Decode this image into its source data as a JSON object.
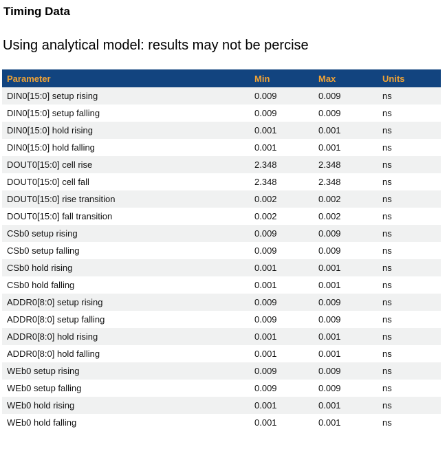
{
  "page": {
    "title": "Timing Data",
    "subtitle": "Using analytical model: results may not be percise"
  },
  "table": {
    "columns": [
      "Parameter",
      "Min",
      "Max",
      "Units"
    ],
    "rows": [
      {
        "parameter": "DIN0[15:0] setup rising",
        "min": "0.009",
        "max": "0.009",
        "units": "ns"
      },
      {
        "parameter": "DIN0[15:0] setup falling",
        "min": "0.009",
        "max": "0.009",
        "units": "ns"
      },
      {
        "parameter": "DIN0[15:0] hold rising",
        "min": "0.001",
        "max": "0.001",
        "units": "ns"
      },
      {
        "parameter": "DIN0[15:0] hold falling",
        "min": "0.001",
        "max": "0.001",
        "units": "ns"
      },
      {
        "parameter": "DOUT0[15:0] cell rise",
        "min": "2.348",
        "max": "2.348",
        "units": "ns"
      },
      {
        "parameter": "DOUT0[15:0] cell fall",
        "min": "2.348",
        "max": "2.348",
        "units": "ns"
      },
      {
        "parameter": "DOUT0[15:0] rise transition",
        "min": "0.002",
        "max": "0.002",
        "units": "ns"
      },
      {
        "parameter": "DOUT0[15:0] fall transition",
        "min": "0.002",
        "max": "0.002",
        "units": "ns"
      },
      {
        "parameter": "CSb0 setup rising",
        "min": "0.009",
        "max": "0.009",
        "units": "ns"
      },
      {
        "parameter": "CSb0 setup falling",
        "min": "0.009",
        "max": "0.009",
        "units": "ns"
      },
      {
        "parameter": "CSb0 hold rising",
        "min": "0.001",
        "max": "0.001",
        "units": "ns"
      },
      {
        "parameter": "CSb0 hold falling",
        "min": "0.001",
        "max": "0.001",
        "units": "ns"
      },
      {
        "parameter": "ADDR0[8:0] setup rising",
        "min": "0.009",
        "max": "0.009",
        "units": "ns"
      },
      {
        "parameter": "ADDR0[8:0] setup falling",
        "min": "0.009",
        "max": "0.009",
        "units": "ns"
      },
      {
        "parameter": "ADDR0[8:0] hold rising",
        "min": "0.001",
        "max": "0.001",
        "units": "ns"
      },
      {
        "parameter": "ADDR0[8:0] hold falling",
        "min": "0.001",
        "max": "0.001",
        "units": "ns"
      },
      {
        "parameter": "WEb0 setup rising",
        "min": "0.009",
        "max": "0.009",
        "units": "ns"
      },
      {
        "parameter": "WEb0 setup falling",
        "min": "0.009",
        "max": "0.009",
        "units": "ns"
      },
      {
        "parameter": "WEb0 hold rising",
        "min": "0.001",
        "max": "0.001",
        "units": "ns"
      },
      {
        "parameter": "WEb0 hold falling",
        "min": "0.001",
        "max": "0.001",
        "units": "ns"
      }
    ]
  },
  "colors": {
    "header_bg": "#12447f",
    "header_text": "#f0a335",
    "row_alt_bg": "#f0f1f1",
    "cell_text": "#111111"
  }
}
